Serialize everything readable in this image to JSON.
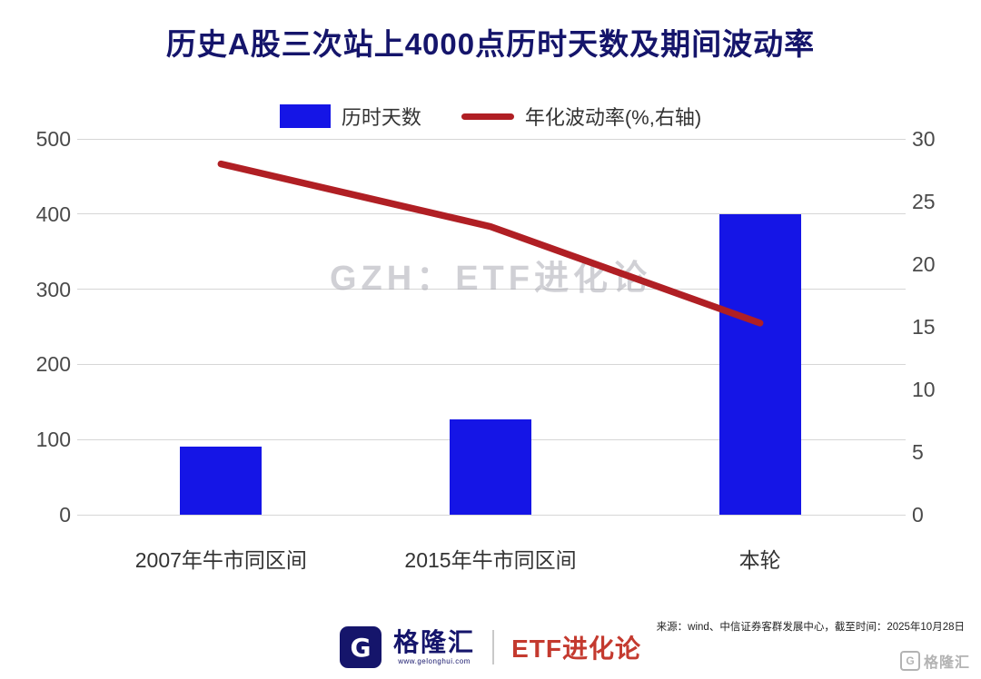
{
  "title": "历史A股三次站上4000点历时天数及期间波动率",
  "watermark": "GZH：ETF进化论",
  "colors": {
    "bar": "#1515e6",
    "line": "#b01f24",
    "navy": "#15156b",
    "brand_red": "#c43a2f"
  },
  "chart_data": {
    "type": "bar+line",
    "categories": [
      "2007年牛市同区间",
      "2015年牛市同区间",
      "本轮"
    ],
    "series": [
      {
        "name": "历时天数",
        "type": "bar",
        "axis": "left",
        "color": "#1515e6",
        "values": [
          90,
          127,
          400
        ]
      },
      {
        "name": "年化波动率(%,右轴)",
        "type": "line",
        "axis": "right",
        "color": "#b01f24",
        "values": [
          28,
          23,
          15.3
        ]
      }
    ],
    "left_axis": {
      "min": 0,
      "max": 500,
      "ticks": [
        500,
        400,
        300,
        200,
        100,
        0
      ]
    },
    "right_axis": {
      "min": 0,
      "max": 30,
      "ticks": [
        30,
        25,
        20,
        15,
        10,
        5,
        0
      ]
    },
    "grid": true,
    "legend_position": "top"
  },
  "footer": {
    "source": "来源：wind、中信证券客群发展中心，截至时间：2025年10月28日",
    "logo_letter": "G",
    "logo_text": "格隆汇",
    "logo_url": "www.gelonghui.com",
    "brand_right": "ETF进化论",
    "corner_letter": "G",
    "corner_watermark": "格隆汇"
  }
}
